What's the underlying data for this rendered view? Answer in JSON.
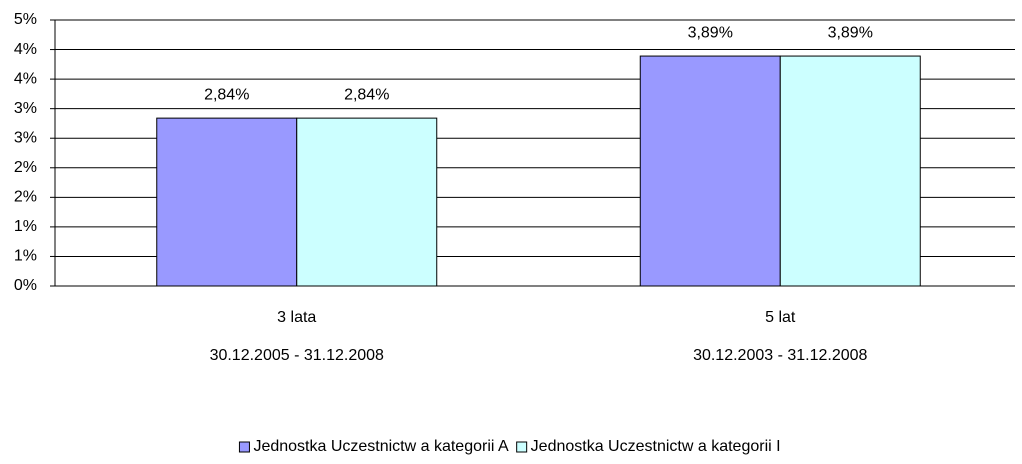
{
  "chart_data": {
    "type": "bar",
    "categories": [
      "3 lata",
      "5 lat"
    ],
    "category_periods": [
      "30.12.2005 - 31.12.2008",
      "30.12.2003 - 31.12.2008"
    ],
    "series": [
      {
        "name": "Jednostka Uczestnictw a kategorii A",
        "color": "#9999ff",
        "values": [
          2.84,
          3.89
        ],
        "value_labels": [
          "2,84%",
          "3,89%"
        ]
      },
      {
        "name": "Jednostka Uczestnictw a kategorii I",
        "color": "#ccffff",
        "values": [
          2.84,
          3.89
        ],
        "value_labels": [
          "2,84%",
          "3,89%"
        ]
      }
    ],
    "ylim": [
      0,
      4.5
    ],
    "yticks": [
      {
        "value": 0,
        "label": "0%"
      },
      {
        "value": 0.5,
        "label": "1%"
      },
      {
        "value": 1,
        "label": "1%"
      },
      {
        "value": 1.5,
        "label": "2%"
      },
      {
        "value": 2,
        "label": "2%"
      },
      {
        "value": 2.5,
        "label": "3%"
      },
      {
        "value": 3,
        "label": "3%"
      },
      {
        "value": 3.5,
        "label": "4%"
      },
      {
        "value": 4,
        "label": "4%"
      },
      {
        "value": 4.5,
        "label": "5%"
      }
    ],
    "grid": true,
    "legend": "bottom"
  }
}
